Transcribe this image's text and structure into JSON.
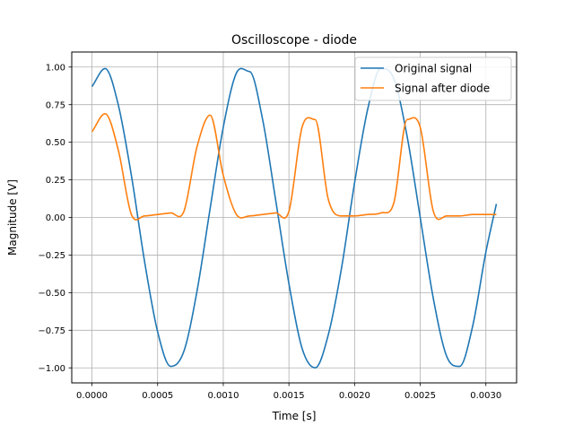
{
  "chart_data": {
    "type": "line",
    "title": "Oscilloscope - diode",
    "xlabel": "Time [s]",
    "ylabel": "Magnitude [V]",
    "xlim": [
      -0.000154,
      0.003234
    ],
    "ylim": [
      -1.1,
      1.1
    ],
    "xticks": [
      0,
      0.0005,
      0.001,
      0.0015,
      0.002,
      0.0025,
      0.003
    ],
    "xtick_labels": [
      "0.0000",
      "0.0005",
      "0.0010",
      "0.0015",
      "0.0020",
      "0.0025",
      "0.0030"
    ],
    "yticks": [
      -1,
      -0.75,
      -0.5,
      -0.25,
      0,
      0.25,
      0.5,
      0.75,
      1
    ],
    "ytick_labels": [
      "−1.00",
      "−0.75",
      "−0.50",
      "−0.25",
      "0.00",
      "0.25",
      "0.50",
      "0.75",
      "1.00"
    ],
    "grid": true,
    "legend_position": "top-right",
    "series": [
      {
        "name": "Original signal",
        "color": "#1f77b4",
        "x": [
          0,
          0.0001,
          0.0002,
          0.0003,
          0.0004,
          0.0005,
          0.0006,
          0.0007,
          0.0008,
          0.0009,
          0.001,
          0.0011,
          0.0012,
          0.0013,
          0.0014,
          0.0015,
          0.0016,
          0.0017,
          0.0018,
          0.0019,
          0.002,
          0.0021,
          0.0022,
          0.0023,
          0.0024,
          0.0025,
          0.0026,
          0.0027,
          0.0028,
          0.0029,
          0.003,
          0.00308
        ],
        "values": [
          0.87,
          0.99,
          0.75,
          0.28,
          -0.29,
          -0.76,
          -0.99,
          -0.89,
          -0.49,
          0.06,
          0.6,
          0.96,
          0.97,
          0.65,
          0.11,
          -0.44,
          -0.87,
          -1.0,
          -0.78,
          -0.34,
          0.23,
          0.72,
          0.99,
          0.92,
          0.54,
          0.0,
          -0.54,
          -0.92,
          -0.99,
          -0.72,
          -0.23,
          0.09
        ]
      },
      {
        "name": "Signal after diode",
        "color": "#ff7f0e",
        "x": [
          0,
          0.0001,
          0.0002,
          0.0003,
          0.0004,
          0.0005,
          0.0006,
          0.0007,
          0.0008,
          0.0009,
          0.001,
          0.0011,
          0.0012,
          0.0013,
          0.0014,
          0.0015,
          0.0016,
          0.0017,
          0.0018,
          0.0019,
          0.002,
          0.0021,
          0.0022,
          0.0023,
          0.0024,
          0.0025,
          0.0026,
          0.0027,
          0.0028,
          0.0029,
          0.003,
          0.00308
        ],
        "values": [
          0.57,
          0.69,
          0.45,
          0.02,
          0.01,
          0.02,
          0.03,
          0.04,
          0.47,
          0.68,
          0.28,
          0.02,
          0.01,
          0.02,
          0.03,
          0.04,
          0.6,
          0.65,
          0.12,
          0.01,
          0.01,
          0.02,
          0.03,
          0.1,
          0.65,
          0.6,
          0.04,
          0.01,
          0.01,
          0.02,
          0.02,
          0.02
        ]
      }
    ]
  }
}
